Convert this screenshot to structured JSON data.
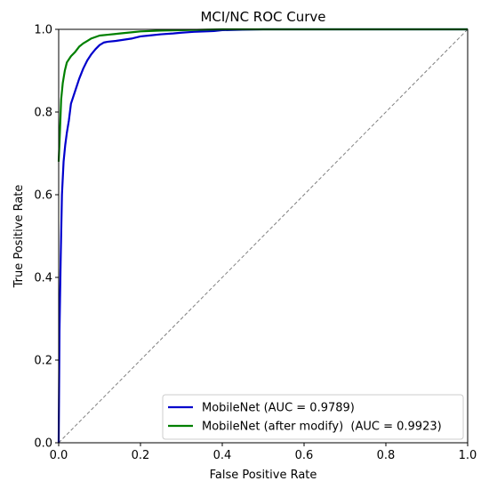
{
  "chart_data": {
    "type": "line",
    "title": "MCI/NC ROC Curve",
    "xlabel": "False Positive Rate",
    "ylabel": "True Positive Rate",
    "xlim": [
      0.0,
      1.0
    ],
    "ylim": [
      0.0,
      1.0
    ],
    "xticks": [
      0.0,
      0.2,
      0.4,
      0.6,
      0.8,
      1.0
    ],
    "yticks": [
      0.0,
      0.2,
      0.4,
      0.6,
      0.8,
      1.0
    ],
    "xtick_labels": [
      "0.0",
      "0.2",
      "0.4",
      "0.6",
      "0.8",
      "1.0"
    ],
    "ytick_labels": [
      "0.0",
      "0.2",
      "0.4",
      "0.6",
      "0.8",
      "1.0"
    ],
    "grid": false,
    "legend_position": "lower-right",
    "series": [
      {
        "name": "MobileNet (AUC = 0.9789)",
        "color": "#0000cc",
        "style": "solid",
        "x": [
          0.0,
          0.002,
          0.005,
          0.008,
          0.012,
          0.016,
          0.02,
          0.025,
          0.03,
          0.04,
          0.05,
          0.06,
          0.07,
          0.08,
          0.09,
          0.1,
          0.11,
          0.12,
          0.14,
          0.16,
          0.18,
          0.2,
          0.22,
          0.25,
          0.28,
          0.3,
          0.33,
          0.36,
          0.38,
          0.4,
          0.45,
          0.5,
          0.6,
          0.7,
          0.8,
          0.9,
          1.0
        ],
        "y": [
          0.0,
          0.27,
          0.45,
          0.6,
          0.68,
          0.72,
          0.75,
          0.78,
          0.82,
          0.85,
          0.88,
          0.905,
          0.925,
          0.94,
          0.952,
          0.962,
          0.968,
          0.97,
          0.972,
          0.975,
          0.978,
          0.983,
          0.985,
          0.988,
          0.99,
          0.992,
          0.994,
          0.995,
          0.996,
          0.998,
          0.999,
          1.0,
          1.0,
          1.0,
          1.0,
          1.0,
          1.0
        ]
      },
      {
        "name": "MobileNet (after modify)  (AUC = 0.9923)",
        "color": "#008000",
        "style": "solid",
        "x": [
          0.0,
          0.003,
          0.006,
          0.01,
          0.015,
          0.02,
          0.03,
          0.04,
          0.05,
          0.06,
          0.07,
          0.08,
          0.1,
          0.12,
          0.15,
          0.18,
          0.2,
          0.25,
          0.3,
          0.35,
          0.4,
          0.5,
          0.6,
          0.7,
          0.8,
          0.9,
          1.0
        ],
        "y": [
          0.68,
          0.75,
          0.83,
          0.87,
          0.9,
          0.92,
          0.935,
          0.945,
          0.958,
          0.966,
          0.972,
          0.978,
          0.985,
          0.987,
          0.99,
          0.993,
          0.995,
          0.997,
          0.998,
          0.999,
          1.0,
          1.0,
          1.0,
          1.0,
          1.0,
          1.0,
          1.0
        ]
      },
      {
        "name": "",
        "color": "#808080",
        "style": "dashed",
        "x": [
          0.0,
          1.0
        ],
        "y": [
          0.0,
          1.0
        ]
      }
    ]
  }
}
